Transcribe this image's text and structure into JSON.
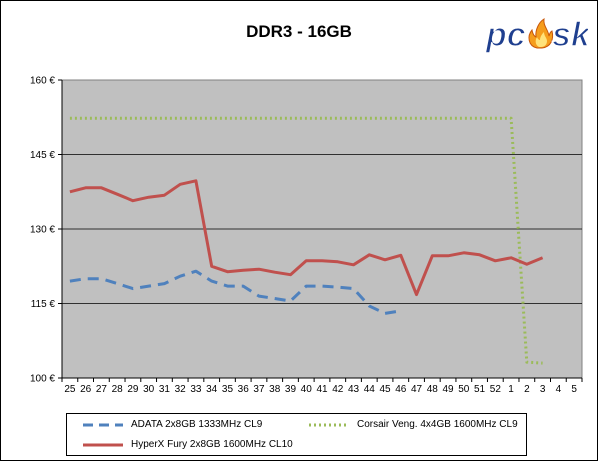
{
  "chart_data": {
    "type": "line",
    "title": "DDR3 - 16GB",
    "categories": [
      "25",
      "26",
      "27",
      "28",
      "29",
      "30",
      "31",
      "32",
      "33",
      "34",
      "35",
      "36",
      "37",
      "38",
      "39",
      "40",
      "41",
      "42",
      "43",
      "44",
      "45",
      "46",
      "47",
      "48",
      "49",
      "50",
      "51",
      "52",
      "1",
      "2",
      "3",
      "4",
      "5"
    ],
    "ylim": [
      100,
      160
    ],
    "yticks": [
      100,
      115,
      130,
      145,
      160
    ],
    "ytick_labels": [
      "100 €",
      "115 €",
      "130 €",
      "145 €",
      "160 €"
    ],
    "grid": true,
    "legend_position": "bottom",
    "series": [
      {
        "name": "ADATA 2x8GB 1333MHz CL9",
        "color": "#4f81bd",
        "dash": "long",
        "values": [
          119.5,
          120,
          120,
          119,
          118,
          118.5,
          119,
          120.5,
          121.5,
          119.5,
          118.5,
          118.5,
          116.5,
          116,
          115.5,
          118.5,
          118.5,
          118.3,
          118,
          114.5,
          113,
          113.5,
          null,
          null,
          null,
          null,
          null,
          null,
          null,
          null,
          null,
          null,
          null
        ]
      },
      {
        "name": "Corsair Veng. 4x4GB 1600MHz CL9",
        "color": "#9bbb59",
        "dash": "dot",
        "values": [
          152.3,
          152.3,
          152.3,
          152.3,
          152.3,
          152.3,
          152.3,
          152.3,
          152.3,
          152.3,
          152.3,
          152.3,
          152.3,
          152.3,
          152.3,
          152.3,
          152.3,
          152.3,
          152.3,
          152.3,
          152.3,
          152.3,
          152.3,
          152.3,
          152.3,
          152.3,
          152.3,
          152.3,
          152.3,
          103.2,
          103,
          null,
          null
        ]
      },
      {
        "name": "HyperX Fury 2x8GB 1600MHz CL10",
        "color": "#c0504d",
        "dash": "solid",
        "values": [
          137.5,
          138.3,
          138.3,
          137,
          135.7,
          136.4,
          136.8,
          139,
          139.7,
          122.5,
          121.4,
          121.7,
          121.9,
          121.3,
          120.8,
          123.6,
          123.6,
          123.4,
          122.8,
          124.8,
          123.8,
          124.7,
          116.8,
          124.6,
          124.6,
          125.2,
          124.8,
          123.6,
          124.2,
          122.9,
          124.2,
          null,
          null
        ]
      }
    ]
  },
  "logo": {
    "text": "pc",
    "text2": "sk"
  }
}
